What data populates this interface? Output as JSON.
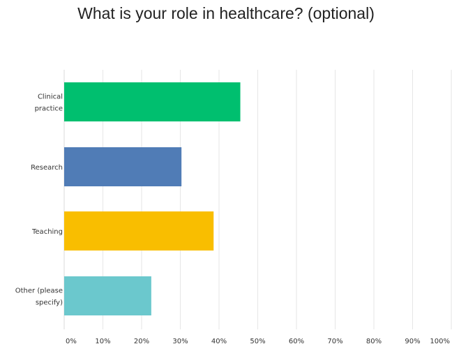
{
  "chart_data": {
    "type": "bar",
    "orientation": "horizontal",
    "title": "What is your role in healthcare? (optional)",
    "categories": [
      "Clinical practice",
      "Research",
      "Teaching",
      "Other (please specify)"
    ],
    "category_label_lines": [
      [
        "Clinical",
        "practice"
      ],
      [
        "Research"
      ],
      [
        "Teaching"
      ],
      [
        "Other (please",
        "specify)"
      ]
    ],
    "values": [
      45.5,
      30.3,
      38.6,
      22.5
    ],
    "value_unit": "%",
    "xlim": [
      0,
      100
    ],
    "ticks": [
      "0%",
      "10%",
      "20%",
      "30%",
      "40%",
      "50%",
      "60%",
      "70%",
      "80%",
      "90%",
      "100%"
    ],
    "grid": true,
    "legend": "none",
    "colors": [
      "#00bf6f",
      "#507cb6",
      "#f9be00",
      "#6bc8cd"
    ],
    "grid_color": "#e6e6e6",
    "axis_color": "#d9d9d9"
  }
}
